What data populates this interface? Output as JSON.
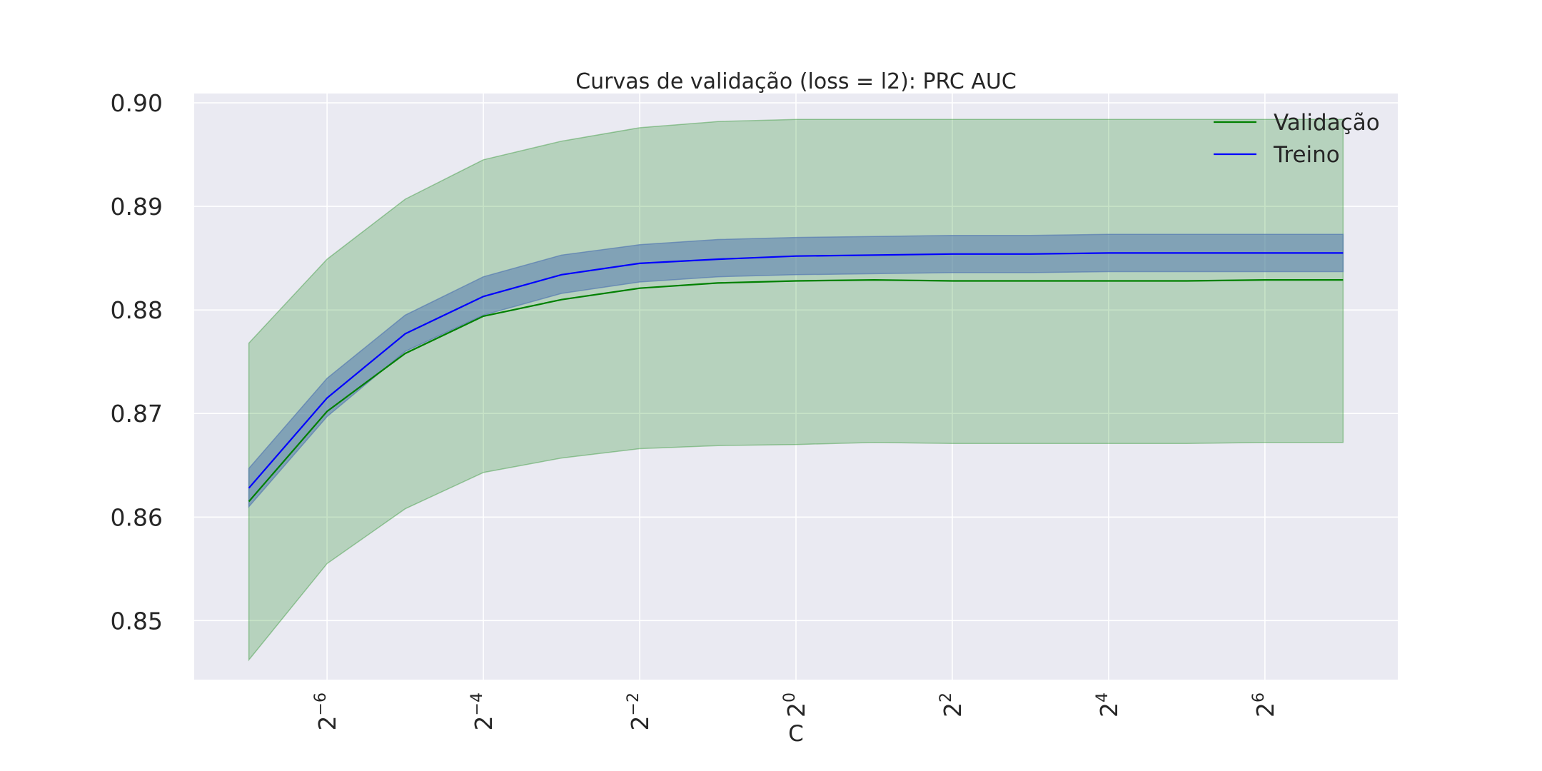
{
  "chart_data": {
    "type": "line",
    "title": "Curvas de validação (loss = l2): PRC AUC",
    "xlabel": "C",
    "ylabel": "",
    "x_scale": "log2",
    "x": [
      -7,
      -6,
      -5,
      -4,
      -3,
      -2,
      -1,
      0,
      1,
      2,
      3,
      4,
      5,
      6,
      7
    ],
    "xticks": [
      {
        "base": "2",
        "exp": "−6",
        "value": -6
      },
      {
        "base": "2",
        "exp": "−4",
        "value": -4
      },
      {
        "base": "2",
        "exp": "−2",
        "value": -2
      },
      {
        "base": "2",
        "exp": "0",
        "value": 0
      },
      {
        "base": "2",
        "exp": "2",
        "value": 2
      },
      {
        "base": "2",
        "exp": "4",
        "value": 4
      },
      {
        "base": "2",
        "exp": "6",
        "value": 6
      }
    ],
    "yticks": [
      "0.85",
      "0.86",
      "0.87",
      "0.88",
      "0.89",
      "0.90"
    ],
    "ylim": [
      0.8443,
      0.9009
    ],
    "xlim": [
      -7.7,
      7.7
    ],
    "grid": true,
    "legend_position": "top-right",
    "series": [
      {
        "name": "Validação",
        "color": "#008000",
        "band_color": "#008000",
        "values": [
          0.8615,
          0.8702,
          0.8758,
          0.8794,
          0.881,
          0.8821,
          0.8826,
          0.8828,
          0.8829,
          0.8828,
          0.8828,
          0.8828,
          0.8828,
          0.8829,
          0.8829
        ],
        "lower": [
          0.8462,
          0.8555,
          0.8608,
          0.8643,
          0.8657,
          0.8666,
          0.8669,
          0.867,
          0.8672,
          0.8671,
          0.8671,
          0.8671,
          0.8671,
          0.8672,
          0.8672
        ],
        "upper": [
          0.8768,
          0.8849,
          0.8907,
          0.8945,
          0.8963,
          0.8976,
          0.8982,
          0.8984,
          0.8984,
          0.8984,
          0.8984,
          0.8984,
          0.8984,
          0.8984,
          0.8984
        ]
      },
      {
        "name": "Treino",
        "color": "#0000ff",
        "band_color": "#4c72b0",
        "values": [
          0.8628,
          0.8715,
          0.8777,
          0.8813,
          0.8834,
          0.8845,
          0.8849,
          0.8852,
          0.8853,
          0.8854,
          0.8854,
          0.8855,
          0.8855,
          0.8855,
          0.8855
        ],
        "lower": [
          0.861,
          0.8697,
          0.876,
          0.8795,
          0.8816,
          0.8827,
          0.8832,
          0.8834,
          0.8835,
          0.8836,
          0.8836,
          0.8837,
          0.8837,
          0.8837,
          0.8837
        ],
        "upper": [
          0.8647,
          0.8734,
          0.8795,
          0.8832,
          0.8853,
          0.8863,
          0.8868,
          0.887,
          0.8871,
          0.8872,
          0.8872,
          0.8873,
          0.8873,
          0.8873,
          0.8873
        ]
      }
    ]
  }
}
